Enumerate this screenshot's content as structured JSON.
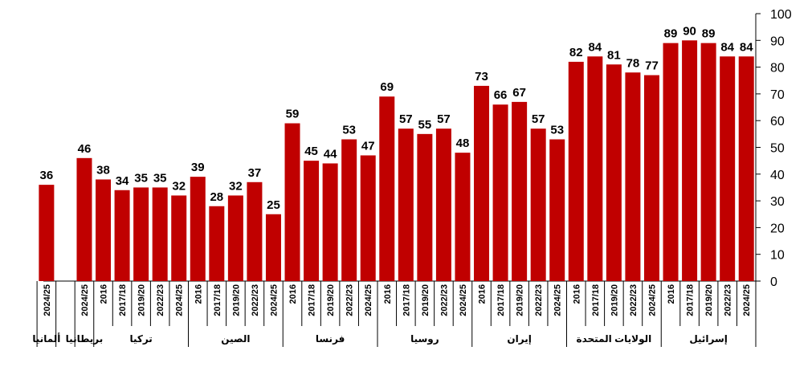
{
  "chart_data": {
    "type": "bar",
    "bar_color": "#c00000",
    "ylim": [
      0,
      100
    ],
    "yticks": [
      0,
      10,
      20,
      30,
      40,
      50,
      60,
      70,
      80,
      90,
      100
    ],
    "grid": false,
    "y_axis_position": "right",
    "groups": [
      {
        "name": "ألمانيا",
        "bars": [
          {
            "label": "2024/25",
            "value": 36
          }
        ]
      },
      {
        "name": "بريطانيا",
        "bars": [
          {
            "label": "2024/25",
            "value": 46
          }
        ]
      },
      {
        "name": "تركيا",
        "bars": [
          {
            "label": "2016",
            "value": 38
          },
          {
            "label": "2017/18",
            "value": 34
          },
          {
            "label": "2019/20",
            "value": 35
          },
          {
            "label": "2022/23",
            "value": 35
          },
          {
            "label": "2024/25",
            "value": 32
          }
        ]
      },
      {
        "name": "الصين",
        "bars": [
          {
            "label": "2016",
            "value": 39
          },
          {
            "label": "2017/18",
            "value": 28
          },
          {
            "label": "2019/20",
            "value": 32
          },
          {
            "label": "2022/23",
            "value": 37
          },
          {
            "label": "2024/25",
            "value": 25
          }
        ]
      },
      {
        "name": "فرنسا",
        "bars": [
          {
            "label": "2016",
            "value": 59
          },
          {
            "label": "2017/18",
            "value": 45
          },
          {
            "label": "2019/20",
            "value": 44
          },
          {
            "label": "2022/23",
            "value": 53
          },
          {
            "label": "2024/25",
            "value": 47
          }
        ]
      },
      {
        "name": "روسيا",
        "bars": [
          {
            "label": "2016",
            "value": 69
          },
          {
            "label": "2017/18",
            "value": 57
          },
          {
            "label": "2019/20",
            "value": 55
          },
          {
            "label": "2022/23",
            "value": 57
          },
          {
            "label": "2024/25",
            "value": 48
          }
        ]
      },
      {
        "name": "إيران",
        "bars": [
          {
            "label": "2016",
            "value": 73
          },
          {
            "label": "2017/18",
            "value": 66
          },
          {
            "label": "2019/20",
            "value": 67
          },
          {
            "label": "2022/23",
            "value": 57
          },
          {
            "label": "2024/25",
            "value": 53
          }
        ]
      },
      {
        "name": "الولايات المتحدة",
        "bars": [
          {
            "label": "2016",
            "value": 82
          },
          {
            "label": "2017/18",
            "value": 84
          },
          {
            "label": "2019/20",
            "value": 81
          },
          {
            "label": "2022/23",
            "value": 78
          },
          {
            "label": "2024/25",
            "value": 77
          }
        ]
      },
      {
        "name": "إسرائيل",
        "bars": [
          {
            "label": "2016",
            "value": 89
          },
          {
            "label": "2017/18",
            "value": 90
          },
          {
            "label": "2019/20",
            "value": 89
          },
          {
            "label": "2022/23",
            "value": 84
          },
          {
            "label": "2024/25",
            "value": 84
          }
        ]
      }
    ]
  }
}
